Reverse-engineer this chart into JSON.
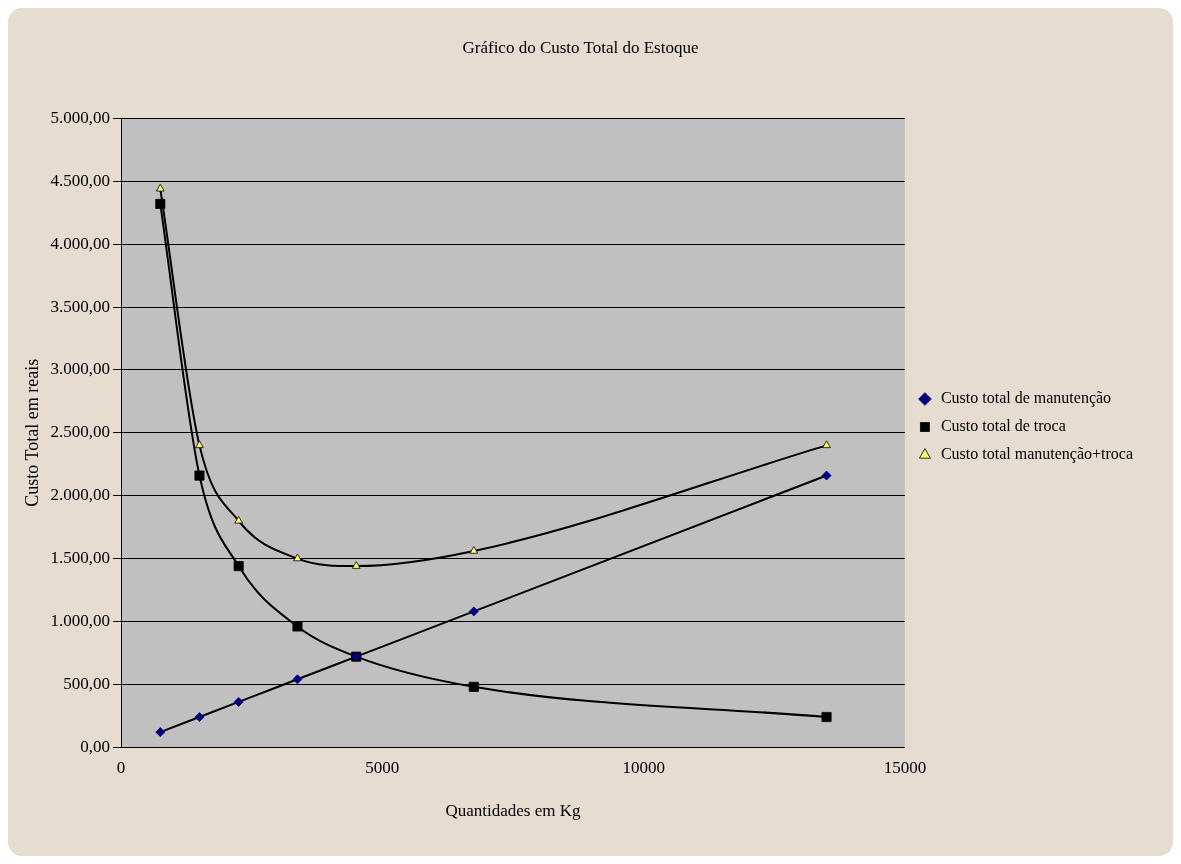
{
  "chart_data": {
    "type": "line",
    "title": "Gráfico do Custo Total do Estoque",
    "xlabel": "Quantidades em Kg",
    "ylabel": "Custo Total em reais",
    "x": [
      750,
      1500,
      2250,
      3375,
      4500,
      6750,
      13500
    ],
    "series": [
      {
        "name": "Custo total de manutenção",
        "color": "#000080",
        "marker": "diamond",
        "values": [
          120,
          240,
          360,
          540,
          720,
          1080,
          2160
        ]
      },
      {
        "name": "Custo total de troca",
        "color": "#000000",
        "marker": "square",
        "values": [
          4320,
          2160,
          1440,
          960,
          720,
          480,
          240
        ]
      },
      {
        "name": "Custo total manutenção+troca",
        "color": "#ffff66",
        "marker": "triangle",
        "values": [
          4440,
          2400,
          1800,
          1500,
          1440,
          1560,
          2400
        ]
      }
    ],
    "xlim": [
      0,
      15000
    ],
    "xticks": [
      0,
      5000,
      10000,
      15000
    ],
    "ylim": [
      0,
      5000
    ],
    "yticks": [
      {
        "value": 0,
        "label": "0,00"
      },
      {
        "value": 500,
        "label": "500,00"
      },
      {
        "value": 1000,
        "label": "1.000,00"
      },
      {
        "value": 1500,
        "label": "1.500,00"
      },
      {
        "value": 2000,
        "label": "2.000,00"
      },
      {
        "value": 2500,
        "label": "2.500,00"
      },
      {
        "value": 3000,
        "label": "3.000,00"
      },
      {
        "value": 3500,
        "label": "3.500,00"
      },
      {
        "value": 4000,
        "label": "4.000,00"
      },
      {
        "value": 4500,
        "label": "4.500,00"
      },
      {
        "value": 5000,
        "label": "5.000,00"
      }
    ],
    "grid": "y",
    "legend": "right"
  }
}
